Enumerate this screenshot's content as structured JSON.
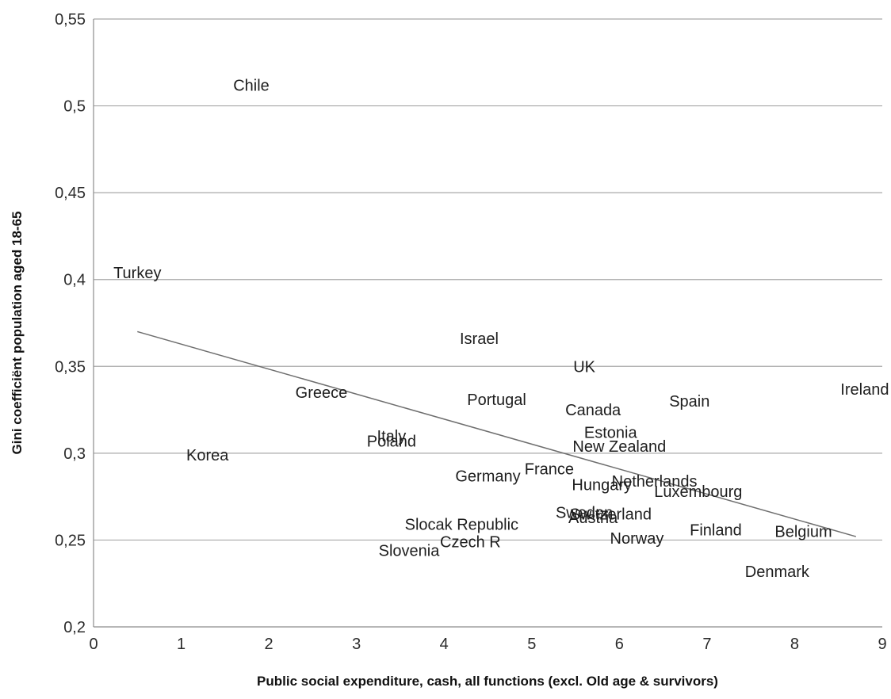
{
  "chart_data": {
    "type": "scatter",
    "xlabel": "Public social expenditure, cash, all functions (excl. Old age & survivors)",
    "ylabel": "Gini coefficiënt population aged 18-65",
    "xlim": [
      0,
      9
    ],
    "ylim": [
      0.2,
      0.55
    ],
    "x_ticks": [
      "0",
      "1",
      "2",
      "3",
      "4",
      "5",
      "6",
      "7",
      "8",
      "9"
    ],
    "y_ticks": [
      "0,2",
      "0,25",
      "0,3",
      "0,35",
      "0,4",
      "0,45",
      "0,5",
      "0,55"
    ],
    "grid": "horizontal",
    "labels_only": true,
    "points": [
      {
        "label": "Chile",
        "x": 1.8,
        "y": 0.512
      },
      {
        "label": "Turkey",
        "x": 0.5,
        "y": 0.404
      },
      {
        "label": "Israel",
        "x": 4.4,
        "y": 0.366
      },
      {
        "label": "UK",
        "x": 5.6,
        "y": 0.35
      },
      {
        "label": "Ireland",
        "x": 8.8,
        "y": 0.337
      },
      {
        "label": "Greece",
        "x": 2.6,
        "y": 0.335
      },
      {
        "label": "Portugal",
        "x": 4.6,
        "y": 0.331
      },
      {
        "label": "Spain",
        "x": 6.8,
        "y": 0.33
      },
      {
        "label": "Canada",
        "x": 5.7,
        "y": 0.325
      },
      {
        "label": "Estonia",
        "x": 5.9,
        "y": 0.312
      },
      {
        "label": "Italy",
        "x": 3.4,
        "y": 0.31
      },
      {
        "label": "Poland",
        "x": 3.4,
        "y": 0.307
      },
      {
        "label": "New Zealand",
        "x": 6.0,
        "y": 0.304
      },
      {
        "label": "Korea",
        "x": 1.3,
        "y": 0.299
      },
      {
        "label": "France",
        "x": 5.2,
        "y": 0.291
      },
      {
        "label": "Germany",
        "x": 4.5,
        "y": 0.287
      },
      {
        "label": "Netherlands",
        "x": 6.4,
        "y": 0.284
      },
      {
        "label": "Hungary",
        "x": 5.8,
        "y": 0.282
      },
      {
        "label": "Luxembourg",
        "x": 6.9,
        "y": 0.278
      },
      {
        "label": "Sweden",
        "x": 5.6,
        "y": 0.266
      },
      {
        "label": "Switzerland",
        "x": 5.9,
        "y": 0.265
      },
      {
        "label": "Austria",
        "x": 5.7,
        "y": 0.263
      },
      {
        "label": "Slocak Republic",
        "x": 4.2,
        "y": 0.259
      },
      {
        "label": "Finland",
        "x": 7.1,
        "y": 0.256
      },
      {
        "label": "Belgium",
        "x": 8.1,
        "y": 0.255
      },
      {
        "label": "Norway",
        "x": 6.2,
        "y": 0.251
      },
      {
        "label": "Czech R",
        "x": 4.3,
        "y": 0.249
      },
      {
        "label": "Slovenia",
        "x": 3.6,
        "y": 0.244
      },
      {
        "label": "Denmark",
        "x": 7.8,
        "y": 0.232
      }
    ],
    "trendline": {
      "x": [
        0.5,
        8.7
      ],
      "y": [
        0.37,
        0.252
      ]
    }
  }
}
